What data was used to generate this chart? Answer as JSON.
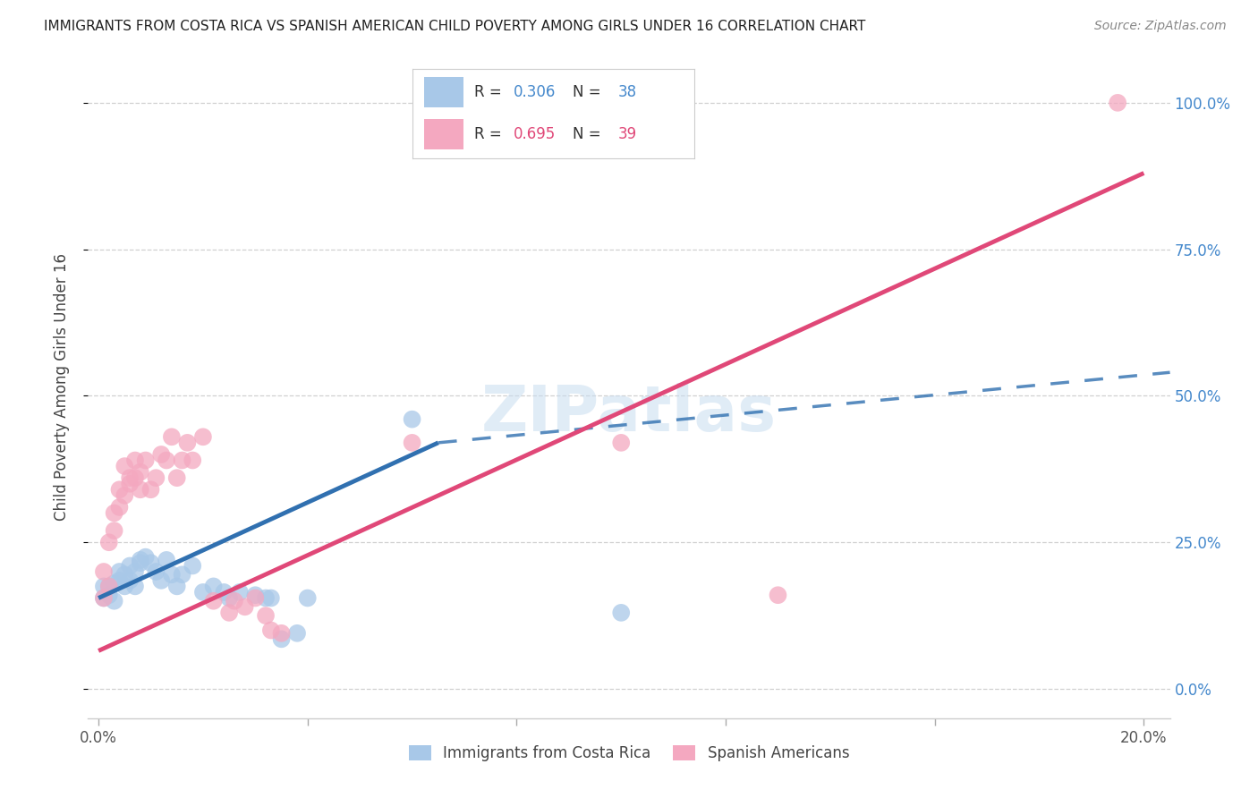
{
  "title": "IMMIGRANTS FROM COSTA RICA VS SPANISH AMERICAN CHILD POVERTY AMONG GIRLS UNDER 16 CORRELATION CHART",
  "source": "Source: ZipAtlas.com",
  "ylabel": "Child Poverty Among Girls Under 16",
  "ytick_labels": [
    "0.0%",
    "25.0%",
    "50.0%",
    "75.0%",
    "100.0%"
  ],
  "ytick_values": [
    0.0,
    0.25,
    0.5,
    0.75,
    1.0
  ],
  "xtick_values": [
    0.0,
    0.04,
    0.08,
    0.12,
    0.16,
    0.2
  ],
  "xlim": [
    -0.002,
    0.205
  ],
  "ylim": [
    -0.05,
    1.08
  ],
  "blue_R": 0.306,
  "blue_N": 38,
  "pink_R": 0.695,
  "pink_N": 39,
  "legend_label_blue": "Immigrants from Costa Rica",
  "legend_label_pink": "Spanish Americans",
  "watermark": "ZIPatlas",
  "blue_color": "#a8c8e8",
  "pink_color": "#f4a8c0",
  "blue_line_color": "#3070b0",
  "pink_line_color": "#e04878",
  "blue_scatter": [
    [
      0.001,
      0.155
    ],
    [
      0.001,
      0.175
    ],
    [
      0.002,
      0.16
    ],
    [
      0.002,
      0.175
    ],
    [
      0.003,
      0.15
    ],
    [
      0.003,
      0.18
    ],
    [
      0.004,
      0.2
    ],
    [
      0.004,
      0.185
    ],
    [
      0.005,
      0.195
    ],
    [
      0.005,
      0.175
    ],
    [
      0.006,
      0.21
    ],
    [
      0.006,
      0.185
    ],
    [
      0.007,
      0.2
    ],
    [
      0.007,
      0.175
    ],
    [
      0.008,
      0.215
    ],
    [
      0.008,
      0.22
    ],
    [
      0.009,
      0.225
    ],
    [
      0.01,
      0.215
    ],
    [
      0.011,
      0.2
    ],
    [
      0.012,
      0.185
    ],
    [
      0.013,
      0.22
    ],
    [
      0.014,
      0.195
    ],
    [
      0.015,
      0.175
    ],
    [
      0.016,
      0.195
    ],
    [
      0.018,
      0.21
    ],
    [
      0.02,
      0.165
    ],
    [
      0.022,
      0.175
    ],
    [
      0.024,
      0.165
    ],
    [
      0.025,
      0.155
    ],
    [
      0.027,
      0.165
    ],
    [
      0.03,
      0.16
    ],
    [
      0.032,
      0.155
    ],
    [
      0.033,
      0.155
    ],
    [
      0.035,
      0.085
    ],
    [
      0.038,
      0.095
    ],
    [
      0.04,
      0.155
    ],
    [
      0.06,
      0.46
    ],
    [
      0.1,
      0.13
    ]
  ],
  "pink_scatter": [
    [
      0.001,
      0.155
    ],
    [
      0.001,
      0.2
    ],
    [
      0.002,
      0.175
    ],
    [
      0.002,
      0.25
    ],
    [
      0.003,
      0.27
    ],
    [
      0.003,
      0.3
    ],
    [
      0.004,
      0.34
    ],
    [
      0.004,
      0.31
    ],
    [
      0.005,
      0.38
    ],
    [
      0.005,
      0.33
    ],
    [
      0.006,
      0.35
    ],
    [
      0.006,
      0.36
    ],
    [
      0.007,
      0.36
    ],
    [
      0.007,
      0.39
    ],
    [
      0.008,
      0.37
    ],
    [
      0.008,
      0.34
    ],
    [
      0.009,
      0.39
    ],
    [
      0.01,
      0.34
    ],
    [
      0.011,
      0.36
    ],
    [
      0.012,
      0.4
    ],
    [
      0.013,
      0.39
    ],
    [
      0.014,
      0.43
    ],
    [
      0.015,
      0.36
    ],
    [
      0.016,
      0.39
    ],
    [
      0.017,
      0.42
    ],
    [
      0.018,
      0.39
    ],
    [
      0.02,
      0.43
    ],
    [
      0.022,
      0.15
    ],
    [
      0.025,
      0.13
    ],
    [
      0.026,
      0.15
    ],
    [
      0.028,
      0.14
    ],
    [
      0.03,
      0.155
    ],
    [
      0.032,
      0.125
    ],
    [
      0.033,
      0.1
    ],
    [
      0.035,
      0.095
    ],
    [
      0.06,
      0.42
    ],
    [
      0.1,
      0.42
    ],
    [
      0.13,
      0.16
    ],
    [
      0.195,
      1.0
    ]
  ],
  "background_color": "#ffffff",
  "grid_color": "#d0d0d0",
  "blue_line": [
    [
      0.0,
      0.155
    ],
    [
      0.065,
      0.42
    ]
  ],
  "blue_line_dashed": [
    [
      0.065,
      0.42
    ],
    [
      0.205,
      0.54
    ]
  ],
  "pink_line": [
    [
      0.0,
      0.065
    ],
    [
      0.2,
      0.88
    ]
  ]
}
